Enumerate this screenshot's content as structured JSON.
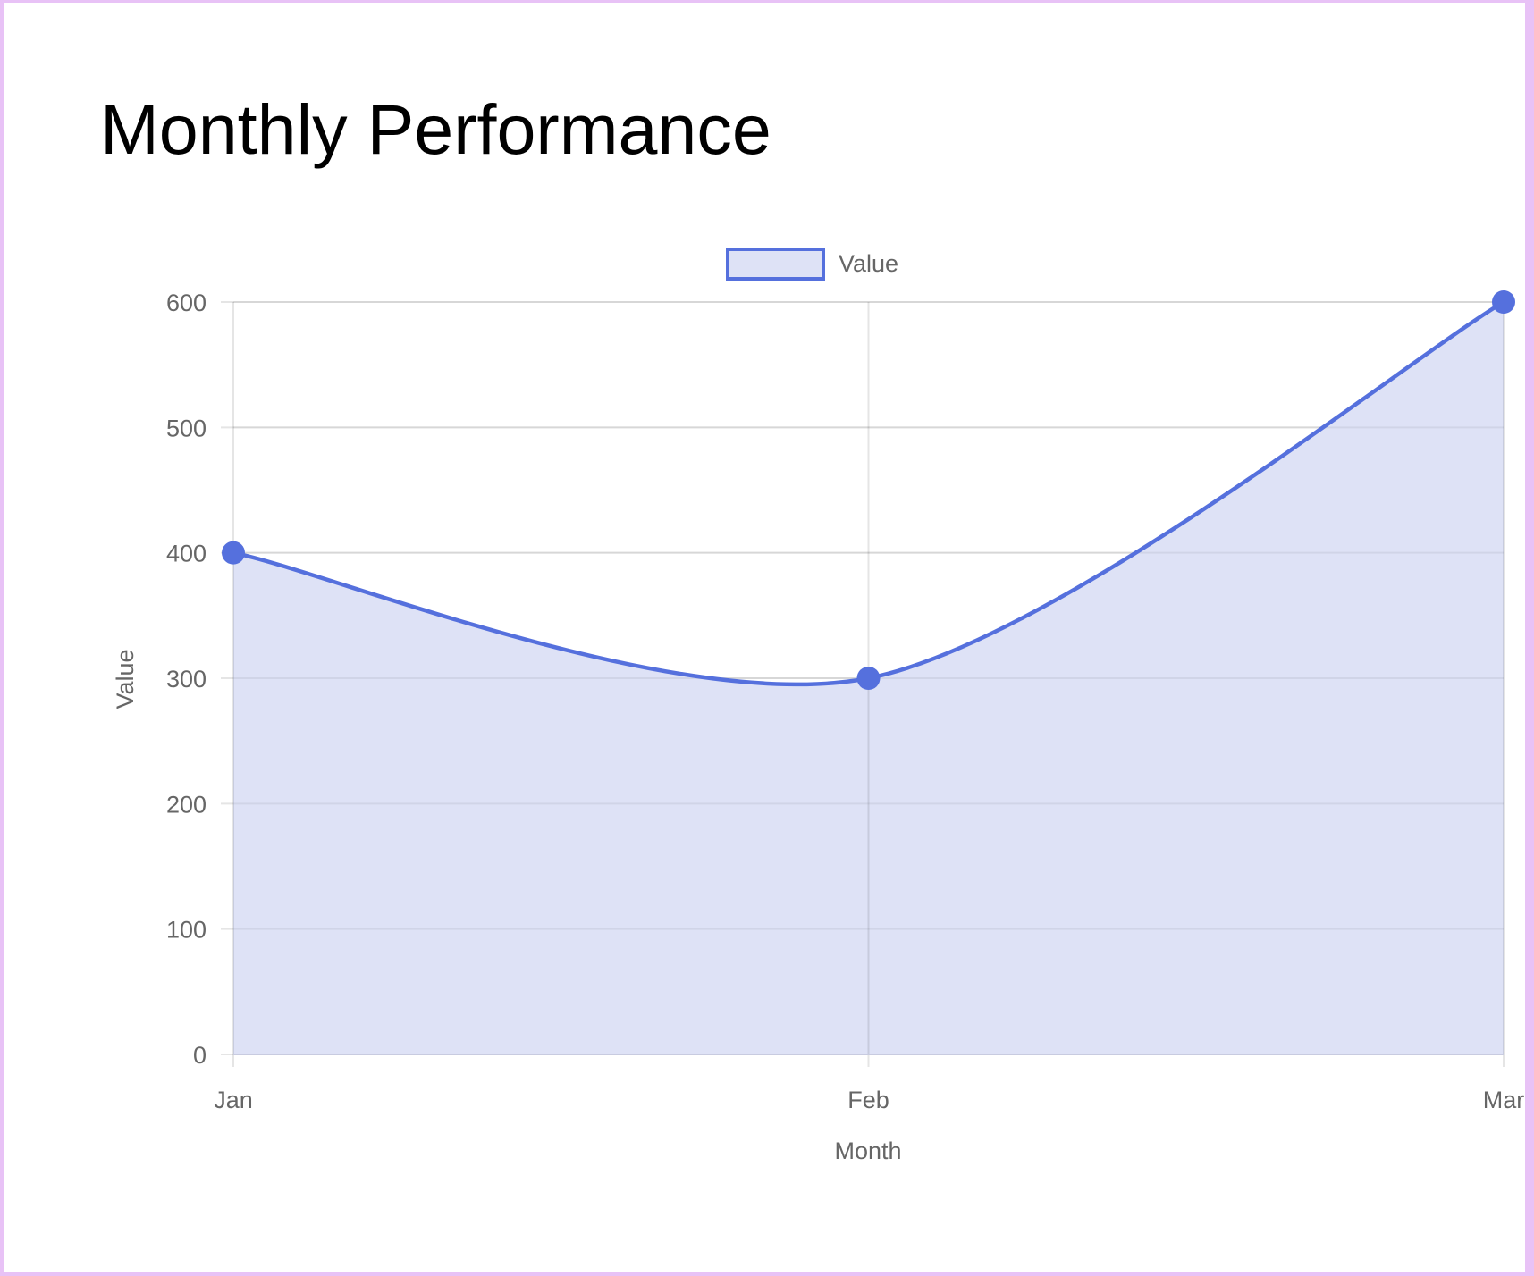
{
  "page": {
    "title": "Monthly Performance",
    "border_color": "#e8c2f6"
  },
  "chart_data": {
    "type": "line",
    "title": "Monthly Performance",
    "categories": [
      "Jan",
      "Feb",
      "Mar"
    ],
    "series": [
      {
        "name": "Value",
        "values": [
          400,
          300,
          600
        ],
        "line_color": "#5570dd",
        "fill_color": "#dee2f6",
        "fill": true
      }
    ],
    "xlabel": "Month",
    "ylabel": "Value",
    "ylim": [
      0,
      600
    ],
    "yticks": [
      0,
      100,
      200,
      300,
      400,
      500,
      600
    ],
    "grid": true,
    "legend_position": "top"
  }
}
